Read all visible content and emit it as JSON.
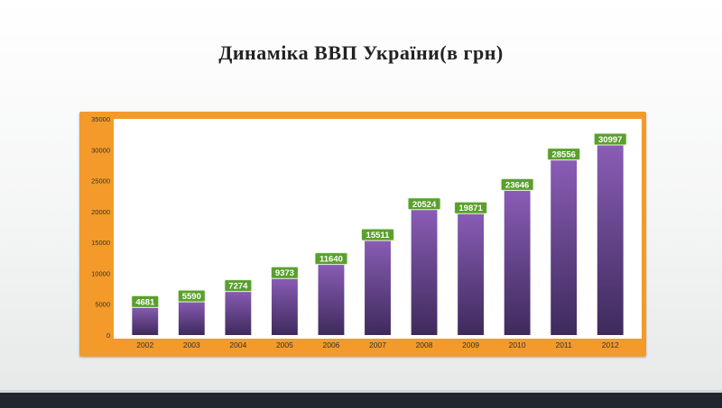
{
  "slide": {
    "title": "Динаміка ВВП України(в грн)"
  },
  "colors": {
    "frame": "#f39a2a",
    "plot_background": "#ffffff",
    "bar_top": "#8a5db6",
    "bar_bottom": "#3e2a5c",
    "label_fill": "#5aa02c",
    "label_text": "#ffffff",
    "axis_text": "#333333",
    "footer": "#1f2630"
  },
  "chart_data": {
    "type": "bar",
    "title": "",
    "xlabel": "",
    "ylabel": "",
    "categories": [
      "2002",
      "2003",
      "2004",
      "2005",
      "2006",
      "2007",
      "2008",
      "2009",
      "2010",
      "2011",
      "2012"
    ],
    "values": [
      4681,
      5590,
      7274,
      9373,
      11640,
      15511,
      20524,
      19871,
      23646,
      28556,
      30997
    ],
    "ylim": [
      0,
      35000
    ],
    "yticks": [
      0,
      5000,
      10000,
      15000,
      20000,
      25000,
      30000,
      35000
    ],
    "grid": false,
    "legend": "none",
    "data_labels": true
  }
}
